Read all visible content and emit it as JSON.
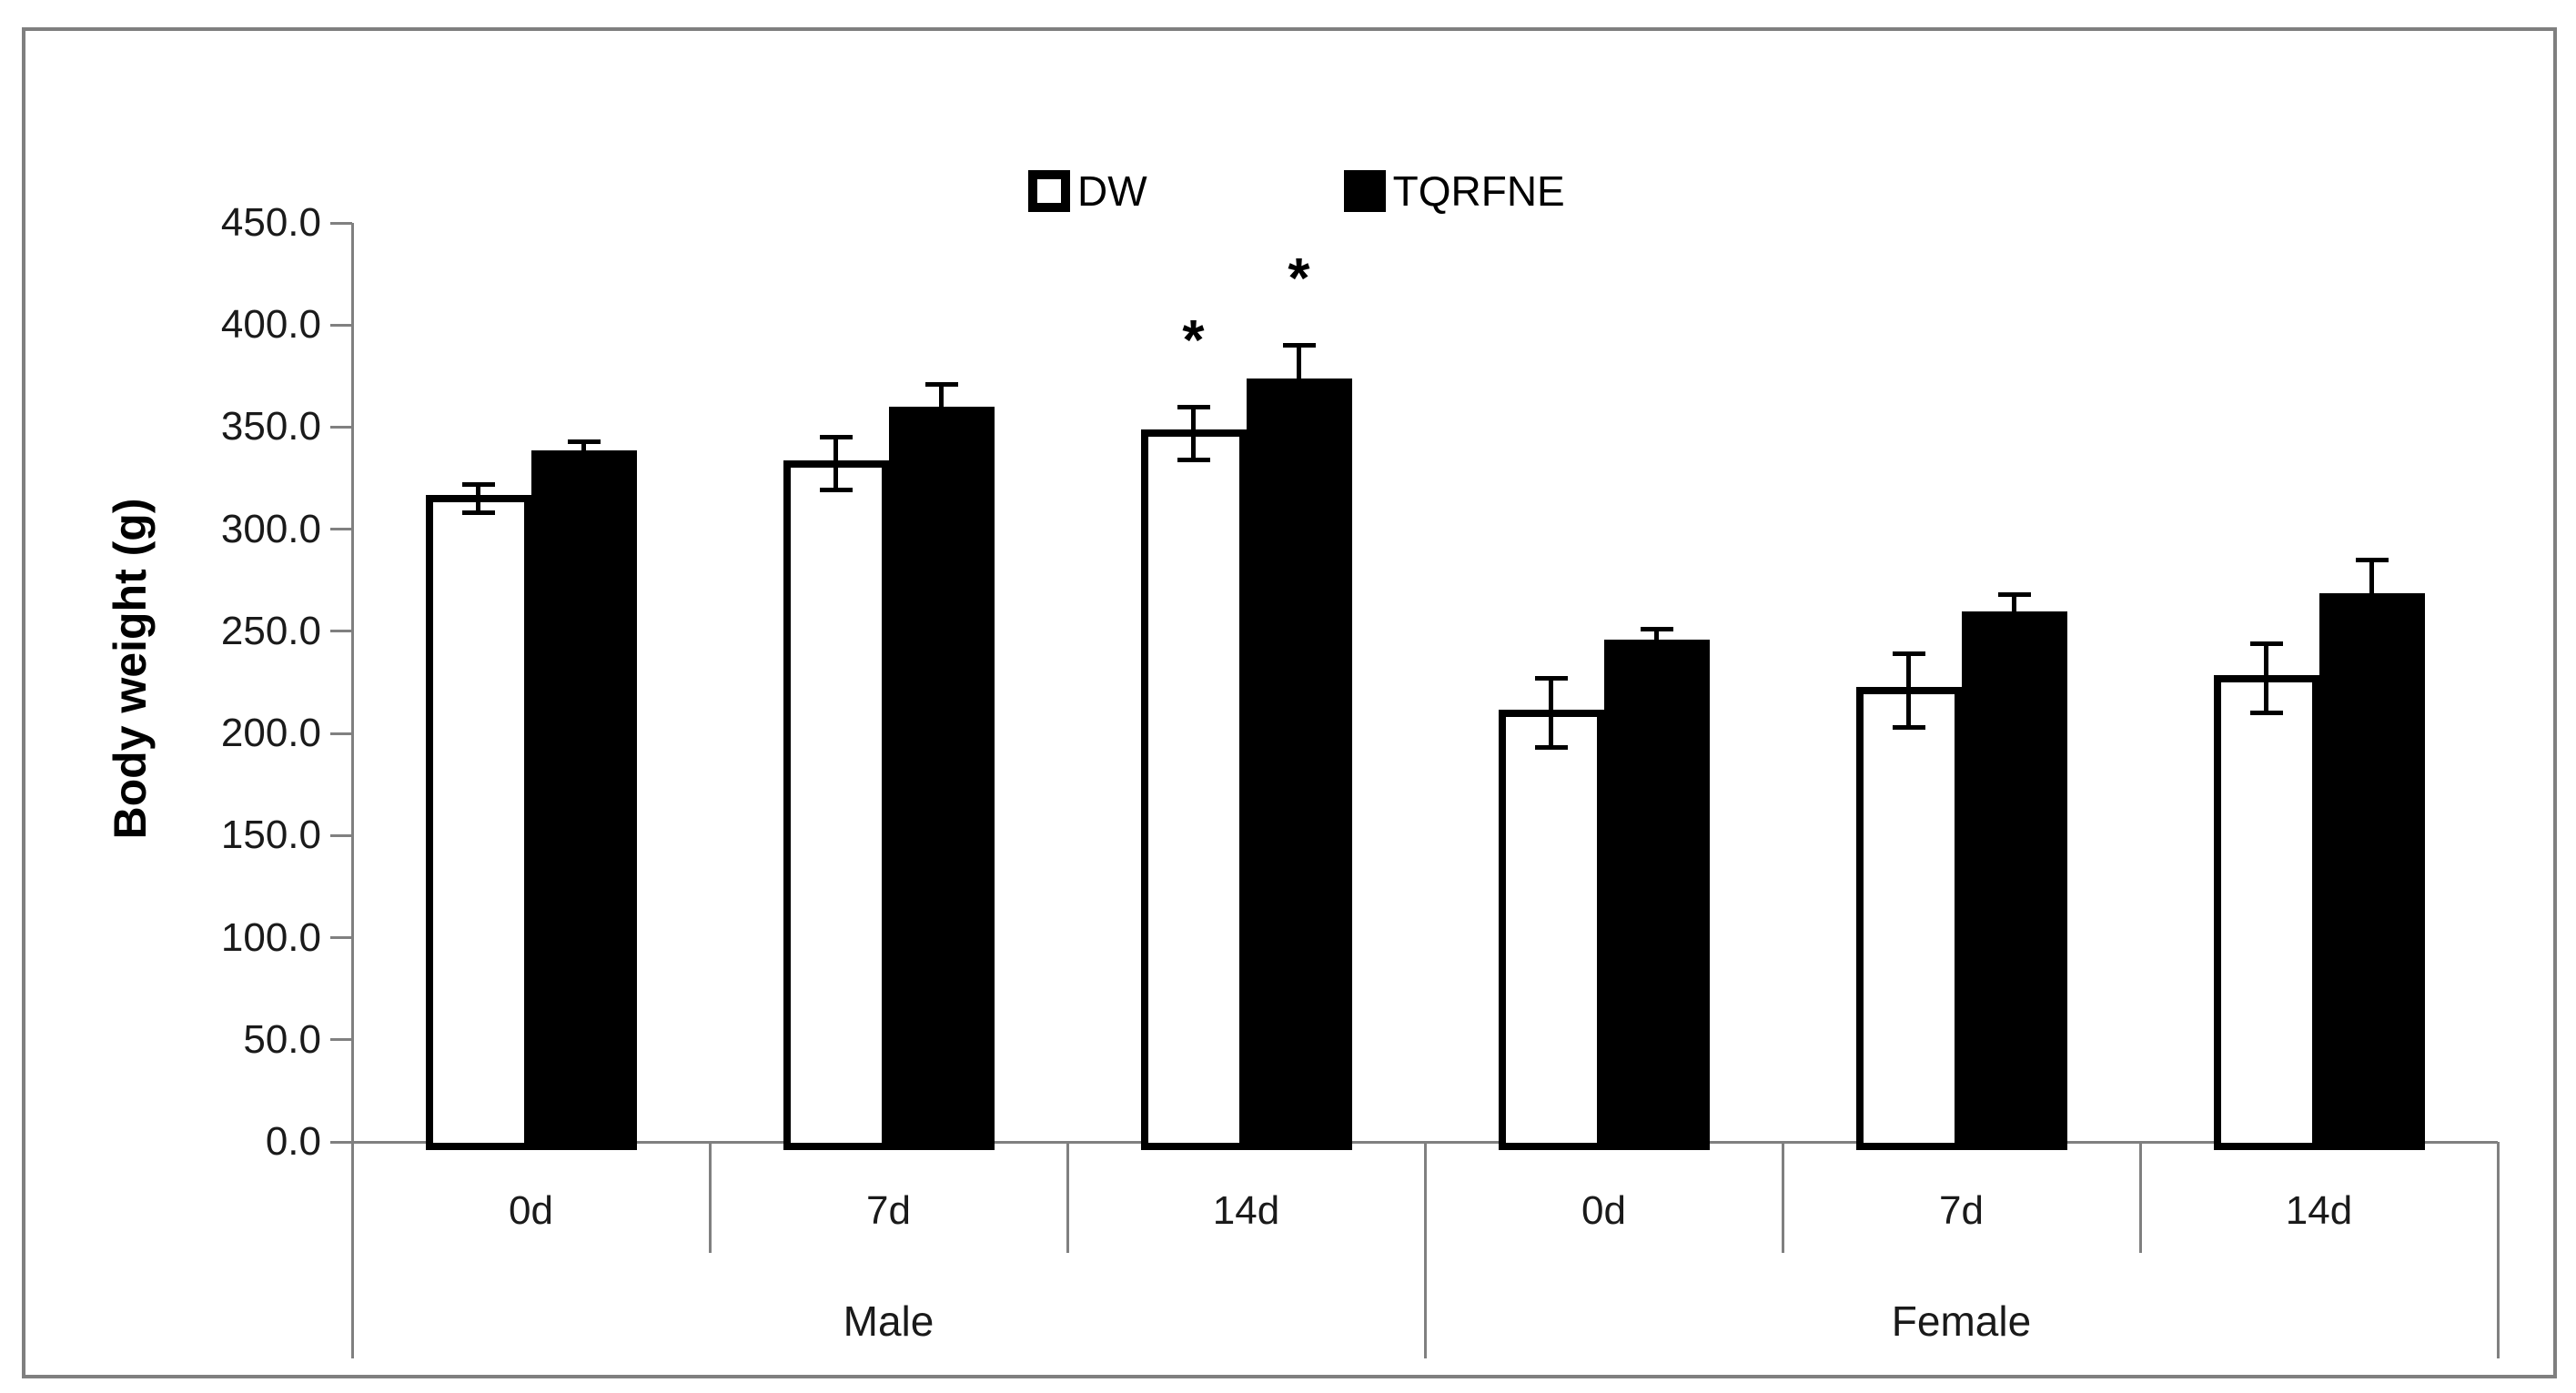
{
  "chart_data": {
    "type": "bar",
    "title": "",
    "xlabel": "",
    "ylabel": "Body weight (g)",
    "ylim": [
      0,
      450
    ],
    "ytick_step": 50,
    "ytick_labels": [
      "450.0",
      "400.0",
      "350.0",
      "300.0",
      "250.0",
      "200.0",
      "150.0",
      "100.0",
      "50.0",
      "0.0"
    ],
    "grid": false,
    "legend_position": "top-center",
    "axis_color": "#808080",
    "error_bar_color": "#000000",
    "groups": [
      {
        "label": "Male",
        "days": [
          "0d",
          "7d",
          "14d"
        ]
      },
      {
        "label": "Female",
        "days": [
          "0d",
          "7d",
          "14d"
        ]
      }
    ],
    "series": [
      {
        "name": "DW",
        "fill": "#ffffff",
        "outline": "#000000",
        "values": [
          315,
          332,
          347,
          210,
          221,
          227
        ],
        "errors": [
          8,
          14,
          14,
          18,
          19,
          18
        ],
        "sig_markers": [
          "",
          "",
          "*",
          "",
          "",
          ""
        ]
      },
      {
        "name": "TQRFNE",
        "fill": "#000000",
        "outline": "#000000",
        "values": [
          337,
          358,
          372,
          244,
          258,
          267
        ],
        "errors": [
          7,
          14,
          19,
          8,
          11,
          19
        ],
        "sig_markers": [
          "",
          "",
          "*",
          "",
          "",
          ""
        ]
      }
    ]
  }
}
